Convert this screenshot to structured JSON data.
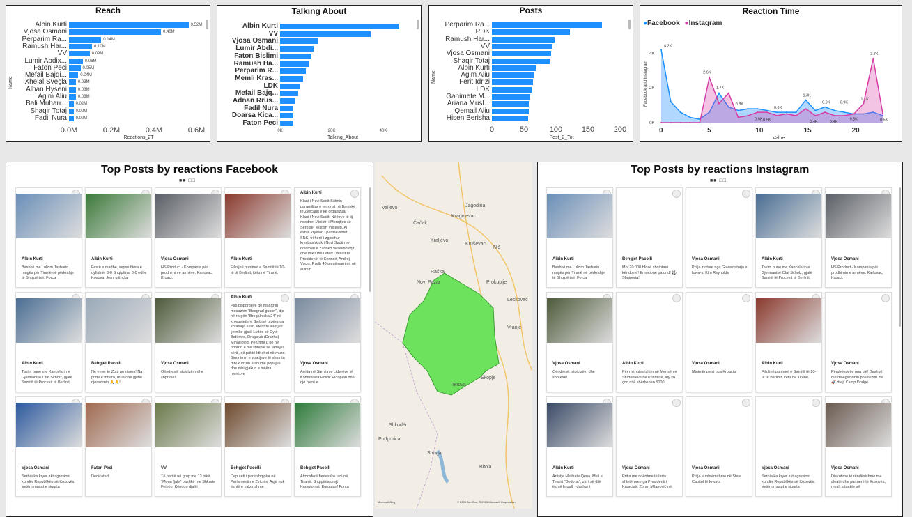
{
  "reach": {
    "title": "Reach",
    "ylabel": "Name",
    "xlabel": "Reactions_2T",
    "ticks": [
      "0.0M",
      "0.2M",
      "0.4M",
      "0.6M"
    ],
    "rows": [
      {
        "name": "Albin Kurti",
        "value": 0.52,
        "label": "0.52M"
      },
      {
        "name": "Vjosa Osmani",
        "value": 0.4,
        "label": "0.40M"
      },
      {
        "name": "Perparim Ra...",
        "value": 0.14,
        "label": "0.14M"
      },
      {
        "name": "Ramush Har...",
        "value": 0.1,
        "label": "0.10M"
      },
      {
        "name": "VV",
        "value": 0.09,
        "label": "0.09M"
      },
      {
        "name": "Lumir Abdix...",
        "value": 0.06,
        "label": "0.06M"
      },
      {
        "name": "Faton Peci",
        "value": 0.05,
        "label": "0.05M"
      },
      {
        "name": "Mefail Bajqi...",
        "value": 0.04,
        "label": "0.04M"
      },
      {
        "name": "Xhelal Sveçla",
        "value": 0.03,
        "label": "0.03M"
      },
      {
        "name": "Alban Hyseni",
        "value": 0.03,
        "label": "0.03M"
      },
      {
        "name": "Agim Aliu",
        "value": 0.03,
        "label": "0.03M"
      },
      {
        "name": "Bali Muharr...",
        "value": 0.02,
        "label": "0.02M"
      },
      {
        "name": "Shaqir Totaj",
        "value": 0.02,
        "label": "0.02M"
      },
      {
        "name": "Fadil Nura",
        "value": 0.02,
        "label": "0.02M"
      }
    ]
  },
  "talking": {
    "title": "Talking About",
    "xlabel": "Talking_About",
    "ticks": [
      "0K",
      "20K",
      "40K"
    ],
    "rows": [
      {
        "name": "Albin Kurti",
        "value": 46
      },
      {
        "name": "VV",
        "value": 35
      },
      {
        "name": "Vjosa Osmani",
        "value": 14.5
      },
      {
        "name": "Lumir Abdi...",
        "value": 13
      },
      {
        "name": "Faton Bislimi",
        "value": 12
      },
      {
        "name": "Ramush Ha...",
        "value": 11
      },
      {
        "name": "Perparim R...",
        "value": 10
      },
      {
        "name": "Memli Kras...",
        "value": 9
      },
      {
        "name": "LDK",
        "value": 7.5
      },
      {
        "name": "Mefail Bajq...",
        "value": 7
      },
      {
        "name": "Adnan Rrus...",
        "value": 6
      },
      {
        "name": "Fadil Nura",
        "value": 5
      },
      {
        "name": "Doarsa Kica...",
        "value": 5
      },
      {
        "name": "Faton Peci",
        "value": 5
      }
    ]
  },
  "posts": {
    "title": "Posts",
    "ylabel": "Name",
    "xlabel": "Post_2_Tot",
    "ticks": [
      "0",
      "50",
      "100",
      "150",
      "200"
    ],
    "rows": [
      {
        "name": "Perparim Ra...",
        "value": 172
      },
      {
        "name": "PDK",
        "value": 122
      },
      {
        "name": "Ramush Har...",
        "value": 98
      },
      {
        "name": "VV",
        "value": 95
      },
      {
        "name": "Vjosa Osmani",
        "value": 92
      },
      {
        "name": "Shaqir Totaj",
        "value": 90
      },
      {
        "name": "Albin Kurti",
        "value": 70
      },
      {
        "name": "Agim Aliu",
        "value": 66
      },
      {
        "name": "Ferit Idrizi",
        "value": 64
      },
      {
        "name": "LDK",
        "value": 62
      },
      {
        "name": "Ganimete M...",
        "value": 60
      },
      {
        "name": "Ariana Musl...",
        "value": 58
      },
      {
        "name": "Qemajl Aliu",
        "value": 58
      },
      {
        "name": "Hisen Berisha",
        "value": 57
      }
    ]
  },
  "reaction_time": {
    "title": "Reaction Time",
    "legend": [
      "Facebook",
      "Instagram"
    ],
    "ylabel": "Facebook and Instagram",
    "xlabel": "Value",
    "xticks": [
      "0",
      "5",
      "10",
      "15",
      "20"
    ],
    "yticks": [
      "4K",
      "2K",
      "0K"
    ],
    "labels": [
      "4.2K",
      "2.6K",
      "1.7K",
      "0.8K",
      "0.6K",
      "1.3K",
      "0.9K",
      "0.9K",
      "1.1K",
      "3.7K",
      "0.5K",
      "0.4K",
      "0.5K",
      "0.4K",
      "0.5K",
      "0.5K"
    ]
  },
  "chart_data": [
    {
      "type": "line",
      "title": "Reaction Time",
      "xlabel": "Value",
      "ylabel": "Facebook and Instagram",
      "x": [
        0,
        1,
        2,
        3,
        4,
        5,
        6,
        7,
        8,
        9,
        10,
        11,
        12,
        13,
        14,
        15,
        16,
        17,
        18,
        19,
        20,
        21,
        22,
        23
      ],
      "series": [
        {
          "name": "Facebook",
          "values": [
            4200,
            1200,
            600,
            300,
            200,
            600,
            1700,
            900,
            700,
            800,
            800,
            700,
            600,
            600,
            600,
            1300,
            700,
            900,
            700,
            600,
            500,
            500,
            600,
            400
          ]
        },
        {
          "name": "Instagram",
          "values": [
            0,
            0,
            0,
            0,
            0,
            2600,
            1100,
            1700,
            300,
            400,
            600,
            600,
            400,
            500,
            400,
            800,
            400,
            600,
            400,
            400,
            500,
            1100,
            3700,
            500
          ]
        }
      ]
    }
  ],
  "facebook_posts": {
    "title": "Top Posts by reactions Facebook",
    "rows": [
      [
        {
          "name": "Albin Kurti",
          "text": "Bashkë me Lulzim Jasharin mugës për Tiranë në përkrahje të Shqipërisë. Forca",
          "img": "#6b8fb8"
        },
        {
          "name": "Albin Kurti",
          "text": "Festë e madhe, sepse fitore e dyfishtë. 3-0 Shqipëria, 3-0 edhe Kosova. Jemi gjithçka",
          "img": "#3c7a3a"
        },
        {
          "name": "Vjosa Osmani",
          "text": "HS Product - Kompania për prodhimin e armëve. Karlovac, Kroaci.",
          "img": "#5b5f66"
        },
        {
          "name": "Albin Kurti",
          "text": "Filloljnë punimet e Samitit të 10-të të Berlinit, këtu në Tiranë.",
          "img": "#8a3a2e"
        },
        {
          "name": "Albin Kurti",
          "text": "Klani i Novi Sadit Sulmin paramilitar e terrorist në Banjskë të Zveçanit e ke organizuar Klani i Novi Sadit. Në krye të tij ndodhet Ministri i Mbrojtjes së Serbisë, Millosh Vuçeviq. Ai është kryetari i partisë-shtet SNS, tri herë i zgjedhur kryebashkiak i Novi Sadit me ndihmën e Zvonko Veselinoviqit, dhe miku më i afërt i vëllait të Presidentit të Serbisë, Andrej Vuçiq. Rreth 40 pjesëmarrësit në sulmin",
          "img": "",
          "long": true
        }
      ],
      [
        {
          "name": "Albin Kurti",
          "text": "Takim pune me Kancelarin e Gjermanisë Olaf Scholz, gjatë Samitit të Procesit të Berlinit,",
          "img": "#4a6e94"
        },
        {
          "name": "Behgjet Pacolli",
          "text": "Ne emer te Zotit po nisem! Na prifte e mbara, mua dhe gjithe njerezimin 🙏🙏!",
          "img": "#9aa9b8"
        },
        {
          "name": "Vjosa Osmani",
          "text": "Qëndresë, stoicizëm dhe shpresë!",
          "img": "#4d5a3a"
        },
        {
          "name": "Albin Kurti",
          "text": "Pas billbordeve që mbartnin mesazhin \"Beograd guxon\", dje në rrugën \"Bregalnicka 24\" në kryeqytetin e Serbisë u përurua shtatorja e ish liderit të lëvizjes çetnike gjatë Luftës së Dytë Botërore, Dragolub (Drazha) Mihailloviq. Përurimi u bë në oborrin e një shtëpie së familjes së tij, që prititë kthehet në muze. Sinonimin e vuajtjeve të shumta mbi kurrizin e shumë popujve dhe mbi gjakun e mijëra njerëzve",
          "img": "",
          "long": true
        },
        {
          "name": "Vjosa Osmani",
          "text": "Arritja në Samitin e Liderëve të Komunitetit Politik Evropian dhe një njerë e",
          "img": "#7a8aa0"
        }
      ],
      [
        {
          "name": "Vjosa Osmani",
          "text": "Serbia ka kryer akt agresioni kundër Republikës së Kosovës. Vetëm masat e sigurta",
          "img": "#2d5a9e"
        },
        {
          "name": "Faton Peci",
          "text": "Dedicated",
          "img": "#a06a50"
        },
        {
          "name": "VV",
          "text": "Të paritë në grup me 13 pikë. \"Mona fjale\" bashkë me Shkurte Fejzën: Këndon djali i",
          "img": "#6b7a4a"
        },
        {
          "name": "Behgjet Pacolli",
          "text": "Deputeti i parë shqiptar në Parlamentin e Zvicrës. Aqjë nuk është e zakonshme",
          "img": "#6e4a2e"
        },
        {
          "name": "Behgjet Pacolli",
          "text": "Atmosferë fantastike tani në Tiranë. Shqipëria drejt Kampionatit Europian! Forca",
          "img": "#2e7a3a"
        }
      ]
    ]
  },
  "instagram_posts": {
    "title": "Top Posts by reactions Instagram",
    "rows": [
      [
        {
          "name": "Albin Kurti",
          "text": "Bashkë me Lulzim Jasharin mugës për Tiranë në përkrahje të Shqipërisë. Forca",
          "img": "#6b8fb8"
        },
        {
          "name": "Behgjet Pacolli",
          "text": "Mbi 20 000 bfozë shqiptarë këndojnë! Emocione pafund! ⚽ Shqiperia!",
          "img": ""
        },
        {
          "name": "Vjosa Osmani",
          "text": "Pritja zyrtare nga Guvernatorja e Iowa-s, Kim Reynolds",
          "img": ""
        },
        {
          "name": "Albin Kurti",
          "text": "Takim pune me Kancelarin e Gjermanisë Olaf Scholz, gjatë Samitit të Procesit të Berlinit,",
          "img": "#4a6e94"
        },
        {
          "name": "Vjosa Osmani",
          "text": "HS Product - Kompania për prodhimin e armëve. Karlovac, Kroaci.",
          "img": "#5b5f66"
        }
      ],
      [
        {
          "name": "Vjosa Osmani",
          "text": "Qëndresë, stoicizëm dhe shpresë!",
          "img": "#4d5a3a"
        },
        {
          "name": "Albin Kurti",
          "text": "Për mëngjes ishim në Mensën e Studentëve në Prishtinë, aty ku çdo ditë shërbehen 5000",
          "img": ""
        },
        {
          "name": "Vjosa Osmani",
          "text": "Minimëngjesi nga Kroacia!",
          "img": ""
        },
        {
          "name": "Albin Kurti",
          "text": "Filloljnë punimet e Samitit të 10-të të Berlinit, këtu në Tiranë.",
          "img": "#8a3a2e"
        },
        {
          "name": "Vjosa Osmani",
          "text": "Përshëndetje nga ujë! Bashkë me delegacionin po lëvizim me 🚀 drejt Camp Dodge",
          "img": ""
        }
      ],
      [
        {
          "name": "Albin Kurti",
          "text": "Artistja Melihate Qena, Meli e Teatrit \"Dodona\", ziri i së dilë është lingulli i dashur i",
          "img": "#3a4a66"
        },
        {
          "name": "Vjosa Osmani",
          "text": "Pritja me ndërtime të larta shtetërore nga Presidenti i Kroacisë, Zoran Milanović në",
          "img": ""
        },
        {
          "name": "Vjosa Osmani",
          "text": "Pritja e mbrëmshme në State Capitol të Iowa-s",
          "img": ""
        },
        {
          "name": "Vjosa Osmani",
          "text": "Serbia ka kryer akt agresioni kundër Republikës së Kosovës. Vetëm masat e sigurta",
          "img": ""
        },
        {
          "name": "Vjosa Osmani",
          "text": "Diskutime të rëndësishme me aleatë dhe partnerë të Kosovës, mesh situatës së",
          "img": "#6a5a50"
        }
      ]
    ]
  },
  "map": {
    "cities": [
      "Valjevo",
      "Jagodina",
      "Kragujevac",
      "Čačak",
      "Kraljevo",
      "Kruševac",
      "Niš",
      "Raška",
      "Novi Pazar",
      "Prokuplje",
      "Leskovac",
      "Vranje",
      "Skopje",
      "Tetovo",
      "Struga",
      "Bitola",
      "Podgorica",
      "Shkodër"
    ],
    "copyright": "© 2023 TomTom, © 2023 Microsoft Corporation",
    "bing": "Microsoft Bing"
  },
  "pager": "■■:□□"
}
